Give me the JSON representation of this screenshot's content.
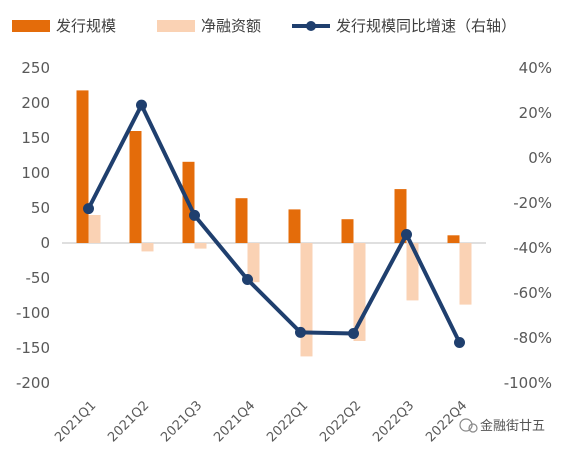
{
  "chart_data": {
    "type": "bar",
    "categories": [
      "2021Q1",
      "2021Q2",
      "2021Q3",
      "2021Q4",
      "2022Q1",
      "2022Q2",
      "2022Q3",
      "2022Q4"
    ],
    "series": [
      {
        "name": "发行规模",
        "type": "bar",
        "axis": "left",
        "color": "#E46C0A",
        "values": [
          218,
          160,
          116,
          64,
          48,
          34,
          77,
          11
        ]
      },
      {
        "name": "净融资额",
        "type": "bar",
        "axis": "left",
        "color": "#FAD2B4",
        "values": [
          40,
          -12,
          -8,
          -56,
          -162,
          -140,
          -82,
          -88
        ]
      },
      {
        "name": "发行规模同比增速（右轴）",
        "type": "line",
        "axis": "right",
        "color": "#1F3F6E",
        "values": [
          -22.5,
          23.5,
          -25.5,
          -54,
          -77.5,
          -78,
          -34,
          -82
        ]
      }
    ],
    "left_axis": {
      "ticks": [
        "250",
        "200",
        "150",
        "100",
        "50",
        "0",
        "-50",
        "-100",
        "-150",
        "-200"
      ],
      "ylim": [
        -200,
        250
      ]
    },
    "right_axis": {
      "ticks": [
        "40%",
        "20%",
        "0%",
        "-20%",
        "-40%",
        "-60%",
        "-80%",
        "-100%"
      ],
      "ylim": [
        -100,
        40
      ]
    },
    "legend_position": "top",
    "grid": false
  },
  "watermark": {
    "text": "金融街廿五"
  }
}
